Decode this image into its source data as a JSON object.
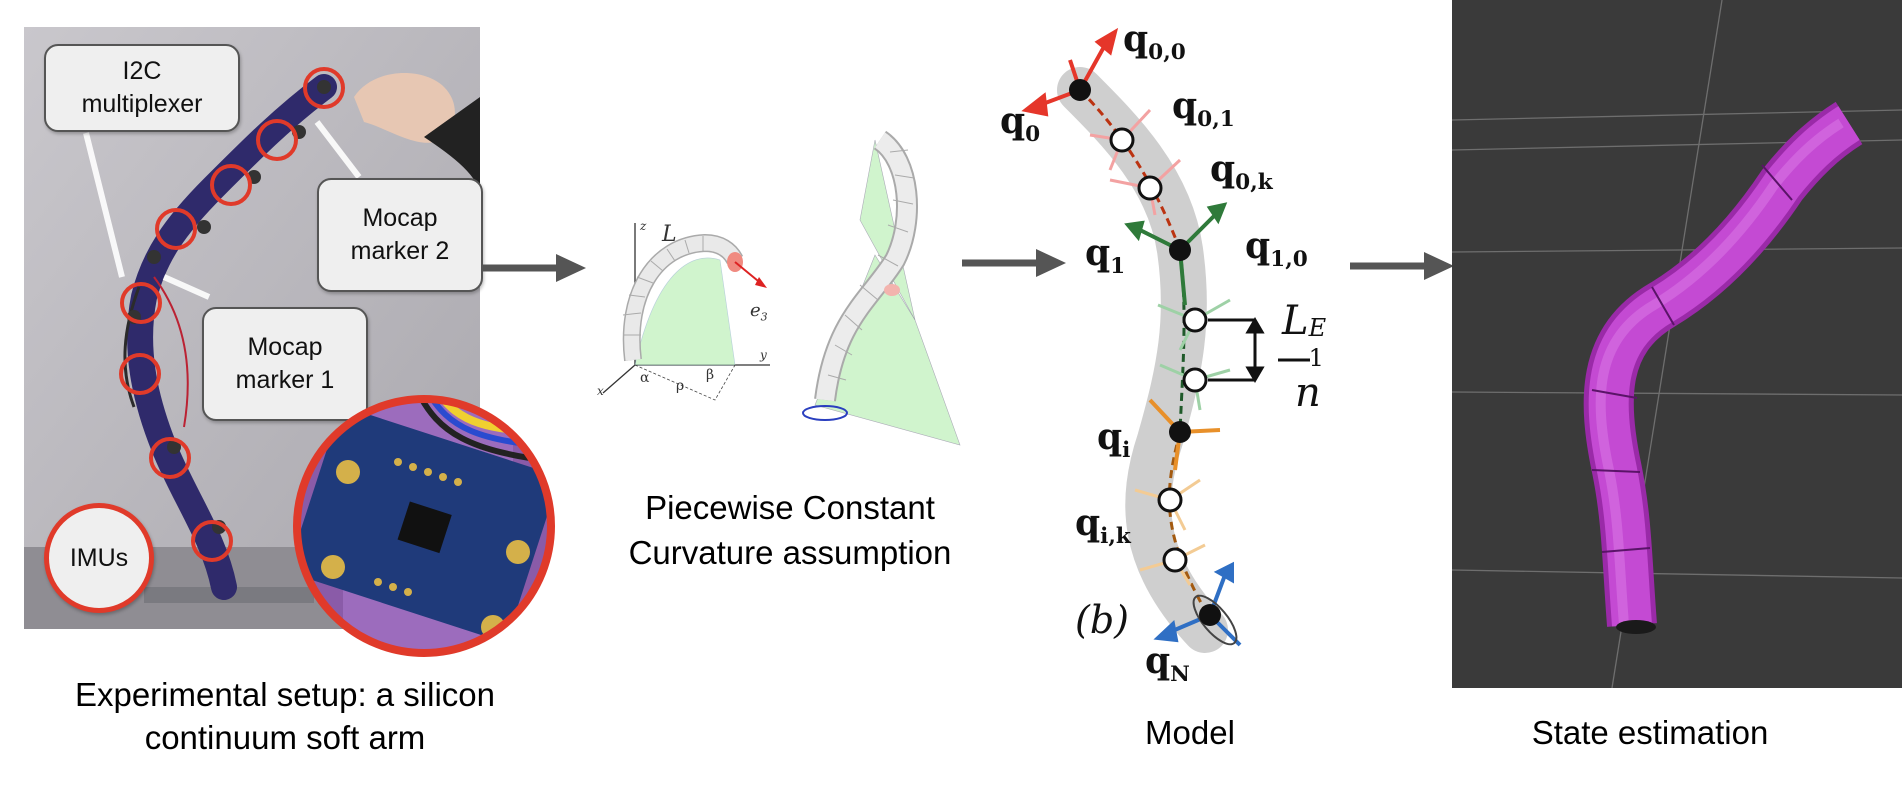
{
  "panels": {
    "setup": {
      "caption_line1": "Experimental setup: a silicon",
      "caption_line2": "continuum soft arm",
      "callouts": {
        "multiplexer": "I2C\nmultiplexer",
        "marker2": "Mocap\nmarker 2",
        "marker1": "Mocap\nmarker 1",
        "imus": "IMUs"
      }
    },
    "pcc": {
      "caption_line1": "Piecewise Constant",
      "caption_line2": "Curvature assumption",
      "labels": {
        "length": "L",
        "z": "z",
        "y": "y",
        "x": "x",
        "e3": "e",
        "e3_sub": "3",
        "alpha": "α",
        "rho": "ρ",
        "beta": "β"
      }
    },
    "model": {
      "caption": "Model",
      "subfig_tag": "(b)",
      "labels": {
        "q00": "q",
        "q00_sub": "0,0",
        "q0": "q",
        "q0_sub": "0",
        "q01": "q",
        "q01_sub": "0,1",
        "q0k": "q",
        "q0k_sub": "0,k",
        "q1": "q",
        "q1_sub": "1",
        "q10": "q",
        "q10_sub": "1,0",
        "qi": "q",
        "qi_sub": "i",
        "qik": "q",
        "qik_sub": "i,k",
        "qN": "q",
        "qN_sub": "N",
        "frac_num": "L",
        "frac_num_sup": "E",
        "frac_num_sub": "1",
        "frac_den": "n"
      }
    },
    "state": {
      "caption": "State estimation"
    }
  },
  "colors": {
    "callout_ring": "#e03a2a",
    "arm_purple": "#2f2a6b",
    "tube_magenta": "#c44ad3",
    "frame_red": "#e5362a",
    "frame_green": "#2f7a3a",
    "frame_orange": "#e8902a",
    "frame_blue": "#2f6fc4",
    "viewer_bg": "#3a3a3a"
  }
}
